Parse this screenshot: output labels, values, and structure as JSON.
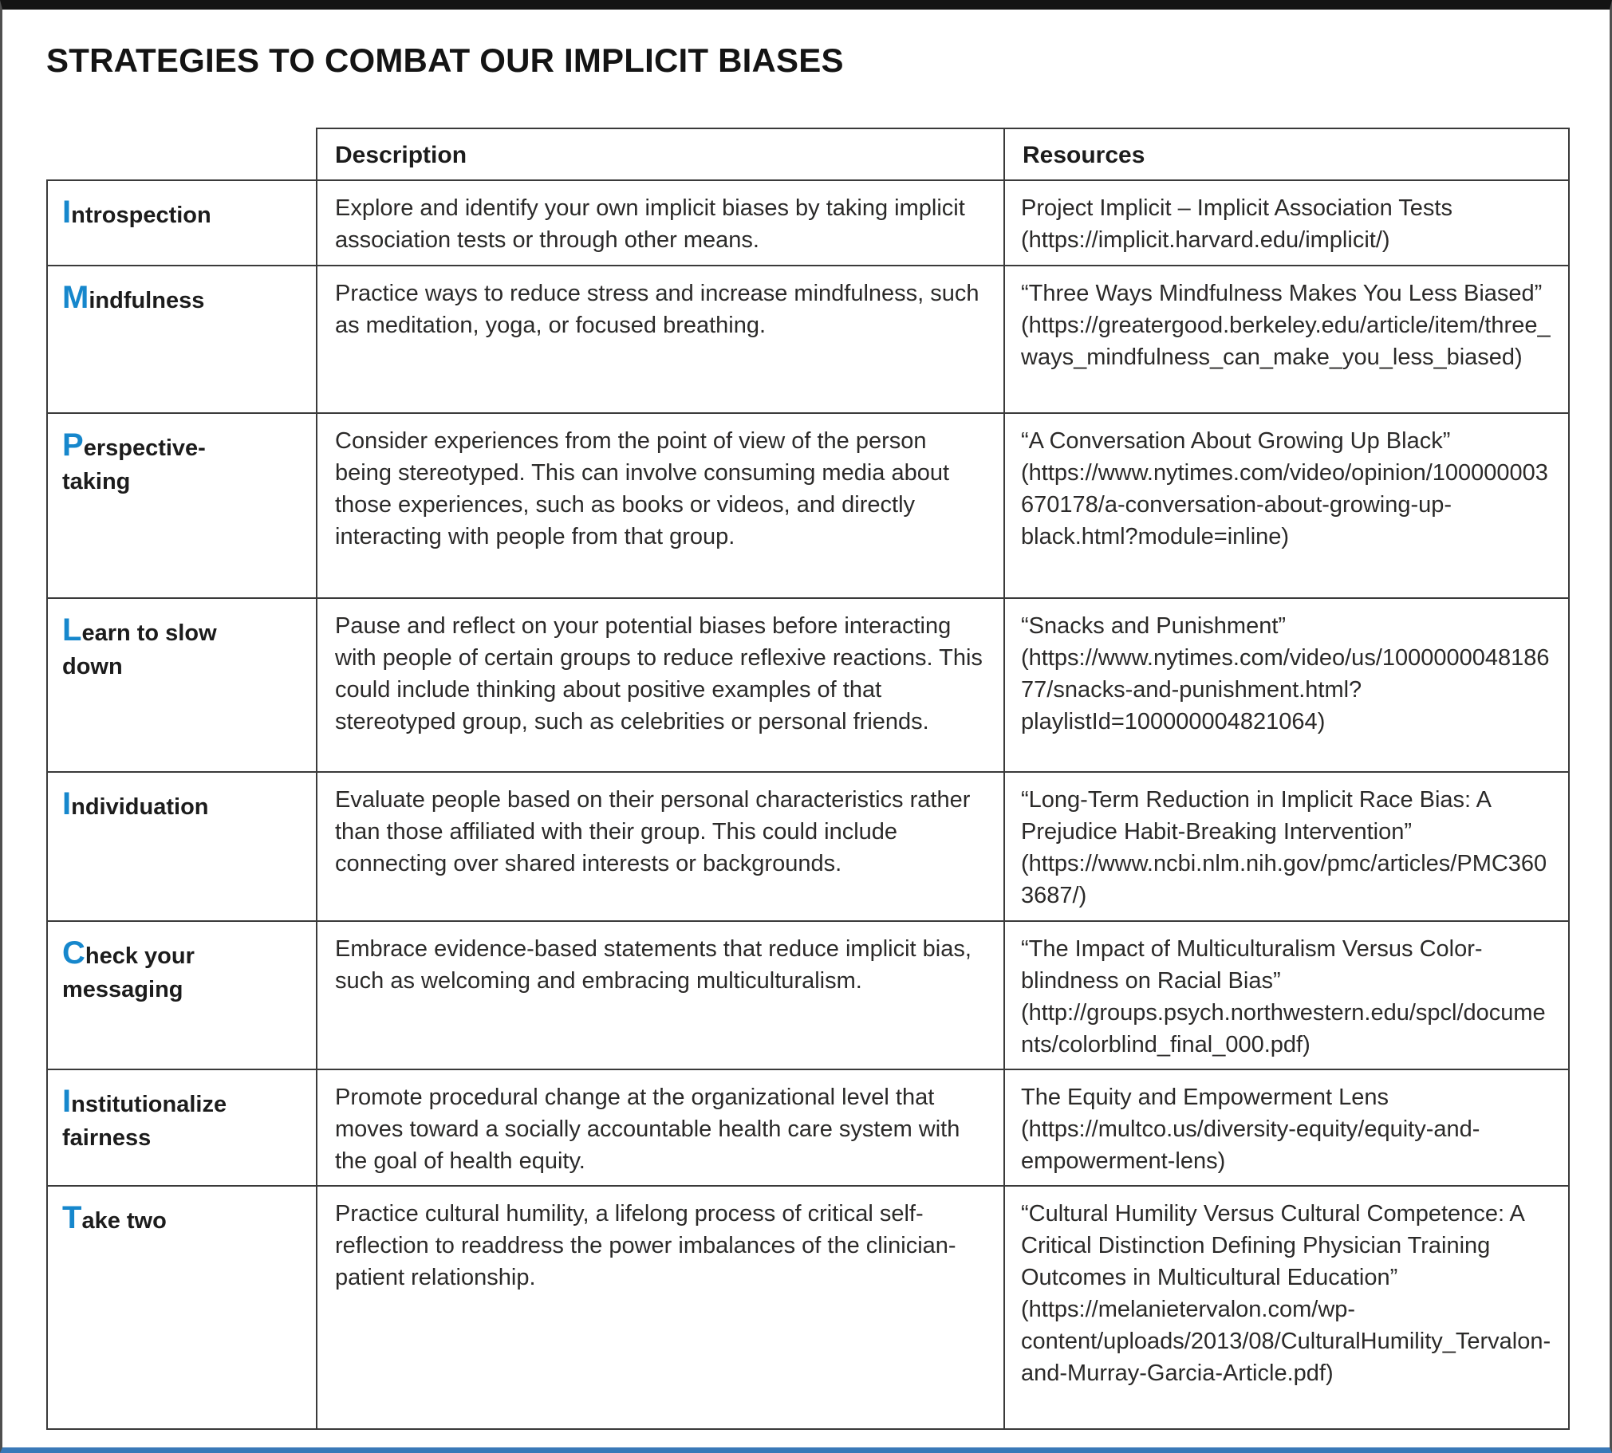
{
  "page": {
    "title": "STRATEGIES TO COMBAT OUR IMPLICIT BIASES"
  },
  "colors": {
    "accent_blue_initials": "#1687cc",
    "bottom_rule_blue": "#3a79b8",
    "table_border": "#3a3a3a",
    "body_text": "#2b2a29"
  },
  "table": {
    "column_headers": {
      "description": "Description",
      "resources": "Resources"
    },
    "rows": [
      {
        "initial": "I",
        "label_rest": "ntrospection",
        "description": "Explore and identify your own implicit biases by taking implicit association tests or through other means.",
        "resources": "Project Implicit – Implicit Association Tests (https://implicit.harvard.edu/implicit/)"
      },
      {
        "initial": "M",
        "label_rest": "indfulness",
        "description": "Practice ways to reduce stress and increase mindfulness, such as meditation, yoga, or focused breathing.",
        "resources": "“Three Ways Mindfulness Makes You Less Biased” (https://greatergood.berkeley.edu/article/item/three_ways_mindfulness_can_make_you_less_biased)"
      },
      {
        "initial": "P",
        "label_rest": "erspective-taking",
        "description": "Consider experiences from the point of view of the person being stereotyped. This can involve consuming media about those experiences, such as books or videos, and directly interacting with people from that group.",
        "resources": "“A Conversation About Growing Up Black” (https://www.nytimes.com/video/opinion/100000003670178/a-conversation-about-growing-up-black.html?module=inline)"
      },
      {
        "initial": "L",
        "label_rest": "earn to slow down",
        "description": "Pause and reflect on your potential biases before interacting with people of certain groups to reduce reflexive reactions. This could include thinking about positive examples of that stereotyped group, such as celebrities or personal friends.",
        "resources": "“Snacks and Punishment” (https://www.nytimes.com/video/us/100000004818677/snacks-and-punishment.html?playlistId=100000004821064)"
      },
      {
        "initial": "I",
        "label_rest": "ndividuation",
        "description": "Evaluate people based on their personal characteristics rather than those affiliated with their group. This could include connecting over shared interests or backgrounds.",
        "resources": "“Long-Term Reduction in Implicit Race Bias: A Prejudice Habit-Breaking Intervention” (https://www.ncbi.nlm.nih.gov/pmc/articles/PMC3603687/)"
      },
      {
        "initial": "C",
        "label_rest": "heck your messaging",
        "description": "Embrace evidence-based statements that reduce implicit bias, such as welcoming and embracing multiculturalism.",
        "resources": "“The Impact of Multiculturalism Versus Color-blindness on Racial Bias” (http://groups.psych.northwestern.edu/spcl/documents/colorblind_final_000.pdf)"
      },
      {
        "initial": "I",
        "label_rest": "nstitutionalize fairness",
        "description": "Promote procedural change at the organizational level that moves toward a socially accountable health care system with the goal of health equity.",
        "resources": "The Equity and Empowerment Lens (https://multco.us/diversity-equity/equity-and-empowerment-lens)"
      },
      {
        "initial": "T",
        "label_rest": "ake two",
        "description": "Practice cultural humility, a lifelong process of critical self-reflection to readdress the power imbalances of the clinician-patient relationship.",
        "resources": "“Cultural Humility Versus Cultural Competence: A Critical Distinction Defining Physician Training Outcomes in Multicultural Education” (https://melanietervalon.com/wp-content/uploads/2013/08/CulturalHumility_Tervalon-and-Murray-Garcia-Article.pdf)"
      }
    ]
  }
}
